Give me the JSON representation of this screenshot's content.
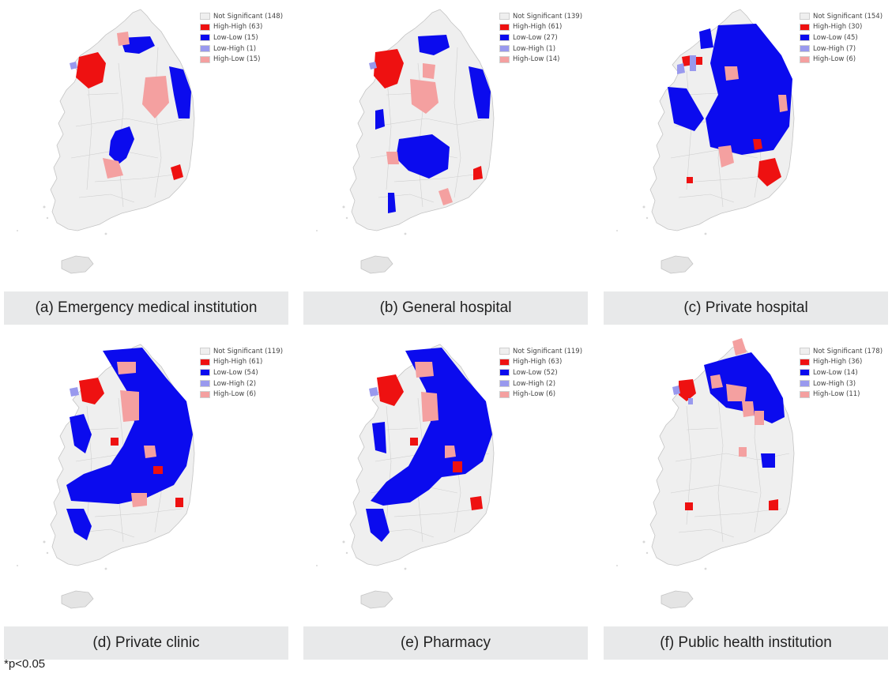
{
  "colors": {
    "Not Significant": "#efefef",
    "High-High": "#ee1111",
    "Low-Low": "#0b0bee",
    "Low-High": "#9999ee",
    "High-Low": "#f4a0a0"
  },
  "panels": [
    {
      "caption": "(a) Emergency medical institution",
      "legend": [
        {
          "category": "Not Significant",
          "label": "Not Significant (148)"
        },
        {
          "category": "High-High",
          "label": "High-High (63)"
        },
        {
          "category": "Low-Low",
          "label": "Low-Low (15)"
        },
        {
          "category": "Low-High",
          "label": "Low-High (1)"
        },
        {
          "category": "High-Low",
          "label": "High-Low (15)"
        }
      ]
    },
    {
      "caption": "(b) General hospital",
      "legend": [
        {
          "category": "Not Significant",
          "label": "Not Significant (139)"
        },
        {
          "category": "High-High",
          "label": "High-High (61)"
        },
        {
          "category": "Low-Low",
          "label": "Low-Low (27)"
        },
        {
          "category": "Low-High",
          "label": "Low-High (1)"
        },
        {
          "category": "High-Low",
          "label": "High-Low (14)"
        }
      ]
    },
    {
      "caption": "(c) Private hospital",
      "legend": [
        {
          "category": "Not Significant",
          "label": "Not Significant (154)"
        },
        {
          "category": "High-High",
          "label": "High-High (30)"
        },
        {
          "category": "Low-Low",
          "label": "Low-Low (45)"
        },
        {
          "category": "Low-High",
          "label": "Low-High (7)"
        },
        {
          "category": "High-Low",
          "label": "High-Low (6)"
        }
      ]
    },
    {
      "caption": "(d) Private clinic",
      "legend": [
        {
          "category": "Not Significant",
          "label": "Not Significant (119)"
        },
        {
          "category": "High-High",
          "label": "High-High (61)"
        },
        {
          "category": "Low-Low",
          "label": "Low-Low (54)"
        },
        {
          "category": "Low-High",
          "label": "Low-High (2)"
        },
        {
          "category": "High-Low",
          "label": "High-Low (6)"
        }
      ]
    },
    {
      "caption": "(e) Pharmacy",
      "legend": [
        {
          "category": "Not Significant",
          "label": "Not Significant (119)"
        },
        {
          "category": "High-High",
          "label": "High-High (63)"
        },
        {
          "category": "Low-Low",
          "label": "Low-Low (52)"
        },
        {
          "category": "Low-High",
          "label": "Low-High (2)"
        },
        {
          "category": "High-Low",
          "label": "High-Low (6)"
        }
      ]
    },
    {
      "caption": "(f) Public health institution",
      "legend": [
        {
          "category": "Not Significant",
          "label": "Not Significant (178)"
        },
        {
          "category": "High-High",
          "label": "High-High (36)"
        },
        {
          "category": "Low-Low",
          "label": "Low-Low (14)"
        },
        {
          "category": "Low-High",
          "label": "Low-High (3)"
        },
        {
          "category": "High-Low",
          "label": "High-Low (11)"
        }
      ]
    }
  ],
  "footnote": "*p<0.05"
}
